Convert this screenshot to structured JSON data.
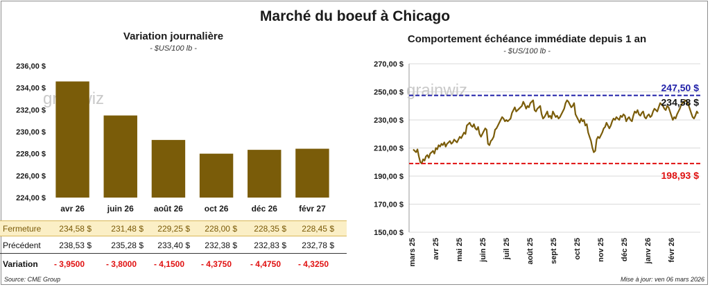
{
  "title": "Marché du boeuf à Chicago",
  "left": {
    "title": "Variation journalière",
    "unit": "- $US/100 lb -",
    "watermark": "grainwiz"
  },
  "right": {
    "title": "Comportement échéance immédiate depuis 1 an",
    "unit": "- $US/100 lb -",
    "watermark": "grainwiz"
  },
  "table": {
    "close_label": "Fermeture",
    "close_values": [
      "234,58  $",
      "231,48  $",
      "229,25  $",
      "228,00  $",
      "228,35  $",
      "228,45  $"
    ],
    "prev_label": "Précédent",
    "prev_values": [
      "238,53  $",
      "235,28  $",
      "233,40  $",
      "232,38  $",
      "232,83  $",
      "232,78  $"
    ],
    "var_label": "Variation",
    "var_values": [
      "- 3,9500",
      "- 3,8000",
      "- 4,1500",
      "- 4,3750",
      "- 4,4750",
      "- 4,3250"
    ]
  },
  "footer": {
    "source": "Source: CME Group",
    "update": "Mise à jour: ven 06 mars 2026"
  },
  "colors": {
    "bar": "#7a5c09",
    "line": "#7a5c09",
    "high": "#1f1fa8",
    "low": "#e01010"
  },
  "chart_data": [
    {
      "type": "bar",
      "title": "Variation journalière",
      "subtitle": "- $US/100 lb -",
      "categories": [
        "avr 26",
        "juin 26",
        "août 26",
        "oct 26",
        "déc 26",
        "févr 27"
      ],
      "values": [
        234.58,
        231.48,
        229.25,
        228.0,
        228.35,
        228.45
      ],
      "ylim": [
        224,
        236
      ],
      "yticks": [
        224,
        226,
        228,
        230,
        232,
        234,
        236
      ],
      "ytick_labels": [
        "224,00 $",
        "226,00 $",
        "228,00 $",
        "230,00 $",
        "232,00 $",
        "234,00 $",
        "236,00 $"
      ],
      "grid": false
    },
    {
      "type": "line",
      "title": "Comportement échéance immédiate depuis 1 an",
      "subtitle": "- $US/100 lb -",
      "ylim": [
        150,
        270
      ],
      "yticks": [
        150,
        170,
        190,
        210,
        230,
        250,
        270
      ],
      "ytick_labels": [
        "150,00 $",
        "170,00 $",
        "190,00 $",
        "210,00 $",
        "230,00 $",
        "250,00 $",
        "270,00 $"
      ],
      "xtick_labels": [
        "mars 25",
        "avr 25",
        "mai 25",
        "juin 25",
        "juil 25",
        "août 25",
        "sept 25",
        "oct 25",
        "nov 25",
        "déc 25",
        "janv 26",
        "févr 26"
      ],
      "grid": true,
      "reference_lines": [
        {
          "value": 247.5,
          "label": "247,50 $",
          "color": "#1f1fa8"
        },
        {
          "value": 198.93,
          "label": "198,93 $",
          "color": "#e01010"
        }
      ],
      "last_value": {
        "value": 234.58,
        "label": "234,58 $"
      },
      "series": [
        {
          "values": [
            209,
            208,
            207,
            209,
            204,
            200,
            199,
            202,
            201,
            204,
            205,
            203,
            206,
            207,
            208,
            206,
            210,
            209,
            212,
            211,
            213,
            212,
            214,
            211,
            213,
            214,
            215,
            213,
            214,
            216,
            215,
            214,
            216,
            218,
            217,
            219,
            221,
            220,
            226,
            227,
            228,
            226,
            225,
            227,
            224,
            223,
            225,
            220,
            218,
            220,
            222,
            224,
            223,
            213,
            212,
            215,
            216,
            218,
            223,
            224,
            226,
            228,
            230,
            232,
            231,
            229,
            230,
            229,
            230,
            231,
            235,
            237,
            239,
            236,
            237,
            238,
            239,
            240,
            243,
            241,
            238,
            240,
            239,
            242,
            243,
            244,
            237,
            236,
            238,
            239,
            240,
            234,
            231,
            232,
            234,
            236,
            232,
            233,
            231,
            236,
            234,
            232,
            233,
            231,
            232,
            234,
            236,
            238,
            242,
            244,
            243,
            241,
            239,
            240,
            242,
            234,
            232,
            230,
            228,
            231,
            229,
            230,
            226,
            227,
            221,
            218,
            215,
            210,
            207,
            208,
            216,
            218,
            217,
            219,
            221,
            224,
            225,
            228,
            226,
            224,
            226,
            229,
            231,
            230,
            232,
            231,
            230,
            233,
            232,
            234,
            233,
            229,
            231,
            232,
            230,
            229,
            233,
            236,
            235,
            237,
            234,
            233,
            235,
            236,
            232,
            231,
            233,
            234,
            232,
            233,
            236,
            238,
            237,
            236,
            239,
            242,
            241,
            240,
            238,
            237,
            240,
            239,
            236,
            233,
            230,
            232,
            231,
            234,
            236,
            238,
            241,
            242,
            243,
            244,
            243,
            241,
            238,
            235,
            232,
            231,
            233,
            236,
            234.58
          ]
        }
      ]
    }
  ]
}
